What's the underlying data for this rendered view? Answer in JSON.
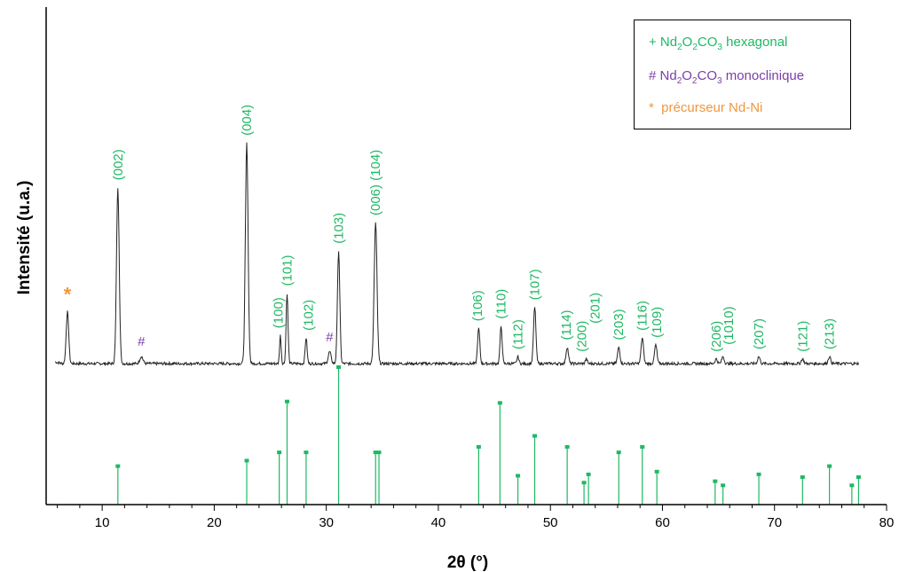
{
  "colors": {
    "hex": "#1fb864",
    "mono": "#7a3ea8",
    "prec": "#f0963c",
    "trace": "#222222"
  },
  "legend": {
    "hex": {
      "sym": "+",
      "pre": " Nd",
      "s1": "2",
      "mid1": "O",
      "s2": "2",
      "mid2": "CO",
      "s3": "3",
      "post": " hexagonal"
    },
    "mono": {
      "sym": "#",
      "pre": " Nd",
      "s1": "2",
      "mid1": "O",
      "s2": "2",
      "mid2": "CO",
      "s3": "3",
      "post": " monoclinique"
    },
    "prec": {
      "sym": "*",
      "label": "  précurseur Nd-Ni"
    }
  },
  "chart_data": {
    "type": "line",
    "xlabel": "2θ (°)",
    "ylabel": "Intensité (u.a.)",
    "xlim": [
      5,
      80
    ],
    "xticks": [
      10,
      20,
      30,
      40,
      50,
      60,
      70,
      80
    ],
    "baseline_2theta": [
      5.8,
      77.5
    ],
    "pattern_peaks": [
      {
        "x": 6.9,
        "h": 0.22,
        "w": 0.16
      },
      {
        "x": 11.4,
        "h": 0.75,
        "w": 0.17
      },
      {
        "x": 13.5,
        "h": 0.03,
        "w": 0.2
      },
      {
        "x": 22.9,
        "h": 0.94,
        "w": 0.17
      },
      {
        "x": 25.9,
        "h": 0.12,
        "w": 0.1
      },
      {
        "x": 26.5,
        "h": 0.3,
        "w": 0.12
      },
      {
        "x": 28.2,
        "h": 0.11,
        "w": 0.12
      },
      {
        "x": 30.3,
        "h": 0.05,
        "w": 0.18
      },
      {
        "x": 31.1,
        "h": 0.48,
        "w": 0.15
      },
      {
        "x": 34.4,
        "h": 0.6,
        "w": 0.18
      },
      {
        "x": 43.6,
        "h": 0.15,
        "w": 0.14
      },
      {
        "x": 45.6,
        "h": 0.16,
        "w": 0.13
      },
      {
        "x": 47.1,
        "h": 0.03,
        "w": 0.12
      },
      {
        "x": 48.6,
        "h": 0.24,
        "w": 0.15
      },
      {
        "x": 51.5,
        "h": 0.07,
        "w": 0.15
      },
      {
        "x": 53.2,
        "h": 0.02,
        "w": 0.12
      },
      {
        "x": 56.1,
        "h": 0.07,
        "w": 0.15
      },
      {
        "x": 58.2,
        "h": 0.11,
        "w": 0.15
      },
      {
        "x": 59.4,
        "h": 0.08,
        "w": 0.15
      },
      {
        "x": 64.8,
        "h": 0.02,
        "w": 0.15
      },
      {
        "x": 65.4,
        "h": 0.03,
        "w": 0.15
      },
      {
        "x": 68.6,
        "h": 0.03,
        "w": 0.15
      },
      {
        "x": 72.5,
        "h": 0.02,
        "w": 0.15
      },
      {
        "x": 74.9,
        "h": 0.03,
        "w": 0.15
      }
    ],
    "peak_labels": [
      {
        "text": "(002)",
        "x": 11.4,
        "h": 0.75,
        "set": "hex"
      },
      {
        "text": "(004)",
        "x": 22.9,
        "h": 0.94,
        "set": "hex"
      },
      {
        "text": "(100)",
        "x": 25.7,
        "h": 0.12,
        "set": "hex"
      },
      {
        "text": "(101)",
        "x": 26.5,
        "h": 0.3,
        "set": "hex"
      },
      {
        "text": "(102)",
        "x": 28.4,
        "h": 0.11,
        "set": "hex"
      },
      {
        "text": "(103)",
        "x": 31.1,
        "h": 0.48,
        "set": "hex"
      },
      {
        "text": "(006) (104)",
        "x": 34.4,
        "h": 0.6,
        "set": "hex"
      },
      {
        "text": "(106)",
        "x": 43.5,
        "h": 0.15,
        "set": "hex"
      },
      {
        "text": "(110)",
        "x": 45.6,
        "h": 0.16,
        "set": "hex"
      },
      {
        "text": "(112)",
        "x": 47.1,
        "h": 0.03,
        "set": "hex"
      },
      {
        "text": "(107)",
        "x": 48.6,
        "h": 0.24,
        "set": "hex"
      },
      {
        "text": "(114)",
        "x": 51.4,
        "h": 0.07,
        "set": "hex"
      },
      {
        "text": "(200)",
        "x": 52.8,
        "h": 0.02,
        "set": "hex"
      },
      {
        "text": "(201)",
        "x": 54.0,
        "h": 0.14,
        "set": "hex"
      },
      {
        "text": "(203)",
        "x": 56.1,
        "h": 0.07,
        "set": "hex"
      },
      {
        "text": "(116)",
        "x": 58.2,
        "h": 0.11,
        "set": "hex"
      },
      {
        "text": "(109)",
        "x": 59.5,
        "h": 0.08,
        "set": "hex"
      },
      {
        "text": "(206)",
        "x": 64.8,
        "h": 0.02,
        "set": "hex"
      },
      {
        "text": "(1010)",
        "x": 65.9,
        "h": 0.05,
        "set": "hex"
      },
      {
        "text": "(207)",
        "x": 68.6,
        "h": 0.03,
        "set": "hex"
      },
      {
        "text": "(121)",
        "x": 72.5,
        "h": 0.02,
        "set": "hex"
      },
      {
        "text": "(213)",
        "x": 74.9,
        "h": 0.03,
        "set": "hex"
      }
    ],
    "markers": [
      {
        "sym": "*",
        "x": 6.9,
        "h": 0.22,
        "set": "prec"
      },
      {
        "sym": "#",
        "x": 13.5,
        "h": 0.03,
        "set": "mono"
      },
      {
        "sym": "#",
        "x": 30.3,
        "h": 0.05,
        "set": "mono"
      }
    ],
    "reference_lines": [
      {
        "x": 11.4,
        "h": 0.28
      },
      {
        "x": 22.9,
        "h": 0.32
      },
      {
        "x": 25.8,
        "h": 0.38
      },
      {
        "x": 26.5,
        "h": 0.75
      },
      {
        "x": 28.2,
        "h": 0.38
      },
      {
        "x": 31.1,
        "h": 1.0
      },
      {
        "x": 34.4,
        "h": 0.38
      },
      {
        "x": 34.7,
        "h": 0.38
      },
      {
        "x": 43.6,
        "h": 0.42
      },
      {
        "x": 45.5,
        "h": 0.74
      },
      {
        "x": 47.1,
        "h": 0.21
      },
      {
        "x": 48.6,
        "h": 0.5
      },
      {
        "x": 51.5,
        "h": 0.42
      },
      {
        "x": 53.0,
        "h": 0.16
      },
      {
        "x": 53.4,
        "h": 0.22
      },
      {
        "x": 56.1,
        "h": 0.38
      },
      {
        "x": 58.2,
        "h": 0.42
      },
      {
        "x": 59.5,
        "h": 0.24
      },
      {
        "x": 64.7,
        "h": 0.17
      },
      {
        "x": 65.4,
        "h": 0.14
      },
      {
        "x": 68.6,
        "h": 0.22
      },
      {
        "x": 72.5,
        "h": 0.2
      },
      {
        "x": 74.9,
        "h": 0.28
      },
      {
        "x": 76.9,
        "h": 0.14
      },
      {
        "x": 77.5,
        "h": 0.2
      }
    ]
  }
}
